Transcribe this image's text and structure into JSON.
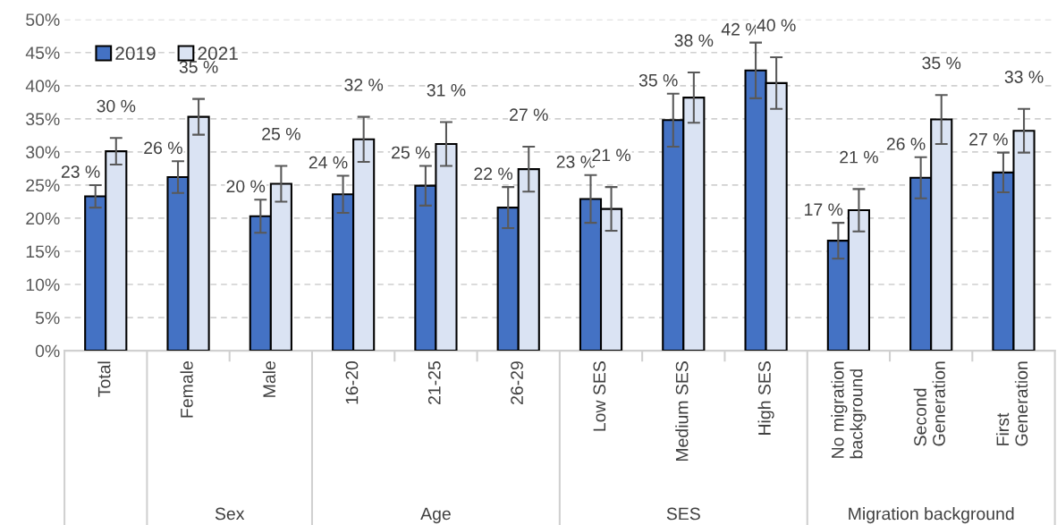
{
  "chart_data": {
    "type": "bar",
    "categories": [
      "Total",
      "Female",
      "Male",
      "16-20",
      "21-25",
      "26-29",
      "Low SES",
      "Medium SES",
      "High SES",
      "No migration\nbackground",
      "Second\nGeneration",
      "First\nGeneration"
    ],
    "series": [
      {
        "name": "2019",
        "color": "#4472c4",
        "values": [
          23.3,
          26.2,
          20.3,
          23.6,
          24.9,
          21.6,
          22.9,
          34.8,
          42.3,
          16.6,
          26.1,
          26.9
        ],
        "errors": [
          1.7,
          2.4,
          2.5,
          2.8,
          3.0,
          3.1,
          3.6,
          4.0,
          4.2,
          2.7,
          3.1,
          3.0
        ],
        "value_labels": [
          "23 %",
          "26 %",
          "20 %",
          "24 %",
          "25 %",
          "22 %",
          "23 %",
          "35 %",
          "42 %",
          "17 %",
          "26 %",
          "27 %"
        ]
      },
      {
        "name": "2021",
        "color": "#dae3f3",
        "values": [
          30.1,
          35.3,
          25.2,
          31.9,
          31.2,
          27.4,
          21.4,
          38.2,
          40.4,
          21.2,
          34.9,
          33.2
        ],
        "errors": [
          2.0,
          2.7,
          2.7,
          3.4,
          3.3,
          3.4,
          3.3,
          3.8,
          3.9,
          3.2,
          3.7,
          3.3
        ],
        "value_labels": [
          "30 %",
          "35 %",
          "25 %",
          "32 %",
          "31 %",
          "27 %",
          "21 %",
          "38 %",
          "40 %",
          "21 %",
          "35 %",
          "33 %"
        ]
      }
    ],
    "ylim": [
      0,
      50
    ],
    "yticks": [
      {
        "value": 0,
        "label": "0%"
      },
      {
        "value": 5,
        "label": "5%"
      },
      {
        "value": 10,
        "label": "10%"
      },
      {
        "value": 15,
        "label": "15%"
      },
      {
        "value": 20,
        "label": "20%"
      },
      {
        "value": 25,
        "label": "25%"
      },
      {
        "value": 30,
        "label": "30%"
      },
      {
        "value": 35,
        "label": "35%"
      },
      {
        "value": 40,
        "label": "40%"
      },
      {
        "value": 45,
        "label": "45%"
      },
      {
        "value": 50,
        "label": "50%"
      }
    ],
    "annotations": [
      "Sex",
      "Age",
      "SES",
      "Migration background"
    ],
    "grid": "y",
    "legend": "top left"
  }
}
